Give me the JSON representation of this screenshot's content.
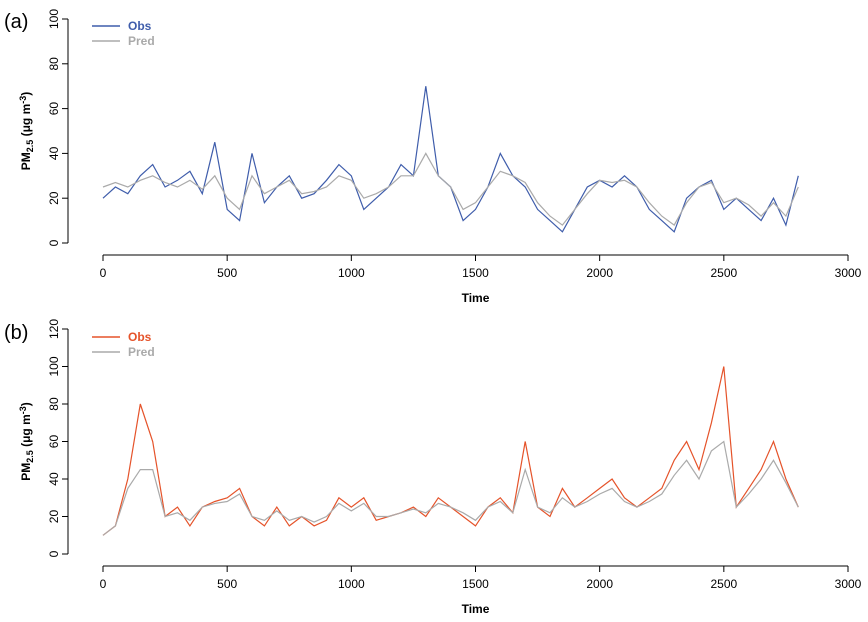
{
  "chart_data": [
    {
      "type": "line",
      "panel_label": "(a)",
      "xlabel": "Time",
      "ylabel": [
        "PM",
        "2.5",
        " (μg m",
        "-3",
        ")"
      ],
      "xlim": [
        0,
        3000
      ],
      "xticks": [
        0,
        500,
        1000,
        1500,
        2000,
        2500,
        3000
      ],
      "ylim": [
        0,
        100
      ],
      "yticks": [
        0,
        20,
        40,
        60,
        80,
        100
      ],
      "legend": "top-left",
      "x": [
        0,
        50,
        100,
        150,
        200,
        250,
        300,
        350,
        400,
        450,
        500,
        550,
        600,
        650,
        700,
        750,
        800,
        850,
        900,
        950,
        1000,
        1050,
        1100,
        1150,
        1200,
        1250,
        1300,
        1350,
        1400,
        1450,
        1500,
        1550,
        1600,
        1650,
        1700,
        1750,
        1800,
        1850,
        1900,
        1950,
        2000,
        2050,
        2100,
        2150,
        2200,
        2250,
        2300,
        2350,
        2400,
        2450,
        2500,
        2550,
        2600,
        2650,
        2700,
        2750,
        2800
      ],
      "series": [
        {
          "name": "Obs",
          "color": "#3f5dab",
          "values": [
            20,
            25,
            22,
            30,
            35,
            25,
            28,
            32,
            22,
            45,
            15,
            10,
            40,
            18,
            25,
            30,
            20,
            22,
            28,
            35,
            30,
            15,
            20,
            25,
            35,
            30,
            70,
            30,
            25,
            10,
            15,
            25,
            40,
            30,
            25,
            15,
            10,
            5,
            15,
            25,
            28,
            25,
            30,
            25,
            15,
            10,
            5,
            20,
            25,
            28,
            15,
            20,
            15,
            10,
            20,
            8,
            30
          ]
        },
        {
          "name": "Pred",
          "color": "#aaaaaa",
          "values": [
            25,
            27,
            25,
            28,
            30,
            27,
            25,
            28,
            24,
            30,
            20,
            15,
            30,
            22,
            25,
            28,
            22,
            23,
            25,
            30,
            28,
            20,
            22,
            25,
            30,
            30,
            40,
            30,
            25,
            15,
            18,
            25,
            32,
            30,
            27,
            18,
            12,
            8,
            15,
            22,
            28,
            27,
            28,
            25,
            18,
            12,
            8,
            18,
            25,
            27,
            18,
            20,
            17,
            12,
            18,
            12,
            25
          ]
        }
      ]
    },
    {
      "type": "line",
      "panel_label": "(b)",
      "xlabel": "Time",
      "ylabel": [
        "PM",
        "2.5",
        " (μg m",
        "-3",
        ")"
      ],
      "xlim": [
        0,
        3000
      ],
      "xticks": [
        0,
        500,
        1000,
        1500,
        2000,
        2500,
        3000
      ],
      "ylim": [
        0,
        120
      ],
      "yticks": [
        0,
        20,
        40,
        60,
        80,
        100,
        120
      ],
      "legend": "top-left",
      "x": [
        0,
        50,
        100,
        150,
        200,
        250,
        300,
        350,
        400,
        450,
        500,
        550,
        600,
        650,
        700,
        750,
        800,
        850,
        900,
        950,
        1000,
        1050,
        1100,
        1150,
        1200,
        1250,
        1300,
        1350,
        1400,
        1450,
        1500,
        1550,
        1600,
        1650,
        1700,
        1750,
        1800,
        1850,
        1900,
        1950,
        2000,
        2050,
        2100,
        2150,
        2200,
        2250,
        2300,
        2350,
        2400,
        2450,
        2500,
        2550,
        2600,
        2650,
        2700,
        2750,
        2800
      ],
      "series": [
        {
          "name": "Obs",
          "color": "#e5532a",
          "values": [
            10,
            15,
            40,
            80,
            60,
            20,
            25,
            15,
            25,
            28,
            30,
            35,
            20,
            15,
            25,
            15,
            20,
            15,
            18,
            30,
            25,
            30,
            18,
            20,
            22,
            25,
            20,
            30,
            25,
            20,
            15,
            25,
            30,
            22,
            60,
            25,
            20,
            35,
            25,
            30,
            35,
            40,
            30,
            25,
            30,
            35,
            50,
            60,
            45,
            70,
            100,
            25,
            35,
            45,
            60,
            40,
            25
          ]
        },
        {
          "name": "Pred",
          "color": "#aaaaaa",
          "values": [
            10,
            15,
            35,
            45,
            45,
            20,
            22,
            18,
            25,
            27,
            28,
            32,
            20,
            18,
            23,
            18,
            20,
            17,
            20,
            27,
            23,
            27,
            20,
            20,
            22,
            24,
            22,
            27,
            25,
            22,
            18,
            25,
            28,
            22,
            45,
            25,
            22,
            30,
            25,
            28,
            32,
            35,
            28,
            25,
            28,
            32,
            42,
            50,
            40,
            55,
            60,
            25,
            32,
            40,
            50,
            38,
            25
          ]
        }
      ]
    }
  ]
}
